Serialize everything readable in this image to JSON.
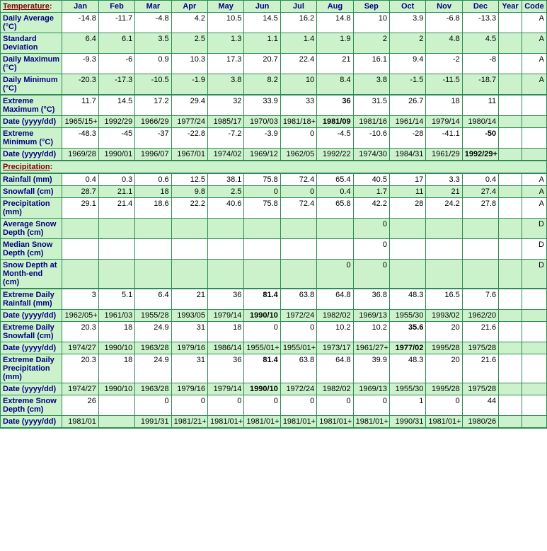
{
  "colors": {
    "header_bg": "#ccf2cc",
    "header_fg": "#000080",
    "section_fg": "#800000",
    "border": "#2e8b57",
    "white_row_bg": "#ffffff",
    "green_row_bg": "#ccf2cc",
    "text": "#000000"
  },
  "headers": [
    "Temperature:",
    "Jan",
    "Feb",
    "Mar",
    "Apr",
    "May",
    "Jun",
    "Jul",
    "Aug",
    "Sep",
    "Oct",
    "Nov",
    "Dec",
    "Year",
    "Code"
  ],
  "sections": [
    {
      "title": "Temperature:",
      "is_first": true,
      "rows": [
        {
          "label": "Daily Average (°C)",
          "shade": "white",
          "cells": [
            "-14.8",
            "-11.7",
            "-4.8",
            "4.2",
            "10.5",
            "14.5",
            "16.2",
            "14.8",
            "10",
            "3.9",
            "-6.8",
            "-13.3",
            "",
            "A"
          ]
        },
        {
          "label": "Standard Deviation",
          "shade": "green",
          "cells": [
            "6.4",
            "6.1",
            "3.5",
            "2.5",
            "1.3",
            "1.1",
            "1.4",
            "1.9",
            "2",
            "2",
            "4.8",
            "4.5",
            "",
            "A"
          ]
        },
        {
          "label": "Daily Maximum (°C)",
          "shade": "white",
          "cells": [
            "-9.3",
            "-6",
            "0.9",
            "10.3",
            "17.3",
            "20.7",
            "22.4",
            "21",
            "16.1",
            "9.4",
            "-2",
            "-8",
            "",
            "A"
          ]
        },
        {
          "label": "Daily Minimum (°C)",
          "shade": "green",
          "bottom_border": true,
          "cells": [
            "-20.3",
            "-17.3",
            "-10.5",
            "-1.9",
            "3.8",
            "8.2",
            "10",
            "8.4",
            "3.8",
            "-1.5",
            "-11.5",
            "-18.7",
            "",
            "A"
          ]
        },
        {
          "label": "Extreme Maximum (°C)",
          "shade": "white",
          "top_border": true,
          "cells": [
            "11.7",
            "14.5",
            "17.2",
            "29.4",
            "32",
            "33.9",
            "33",
            {
              "v": "36",
              "b": true
            },
            "31.5",
            "26.7",
            "18",
            "11",
            "",
            ""
          ]
        },
        {
          "label": "Date (yyyy/dd)",
          "shade": "green",
          "cells": [
            "1965/15+",
            "1992/29",
            "1966/29",
            "1977/24",
            "1985/17",
            "1970/03",
            "1981/18+",
            {
              "v": "1981/09",
              "b": true
            },
            "1981/16",
            "1961/14",
            "1979/14",
            "1980/14",
            "",
            ""
          ]
        },
        {
          "label": "Extreme Minimum (°C)",
          "shade": "white",
          "cells": [
            "-48.3",
            "-45",
            "-37",
            "-22.8",
            "-7.2",
            "-3.9",
            "0",
            "-4.5",
            "-10.6",
            "-28",
            "-41.1",
            {
              "v": "-50",
              "b": true
            },
            "",
            ""
          ]
        },
        {
          "label": "Date (yyyy/dd)",
          "shade": "green",
          "bottom_border": true,
          "cells": [
            "1969/28",
            "1990/01",
            "1996/07",
            "1967/01",
            "1974/02",
            "1969/12",
            "1962/05",
            "1992/22",
            "1974/30",
            "1984/31",
            "1961/29",
            {
              "v": "1992/29+",
              "b": true
            },
            "",
            ""
          ]
        }
      ]
    },
    {
      "title": "Precipitation:",
      "rows": [
        {
          "label": "Rainfall (mm)",
          "shade": "white",
          "cells": [
            "0.4",
            "0.3",
            "0.6",
            "12.5",
            "38.1",
            "75.8",
            "72.4",
            "65.4",
            "40.5",
            "17",
            "3.3",
            "0.4",
            "",
            "A"
          ]
        },
        {
          "label": "Snowfall (cm)",
          "shade": "green",
          "cells": [
            "28.7",
            "21.1",
            "18",
            "9.8",
            "2.5",
            "0",
            "0",
            "0.4",
            "1.7",
            "11",
            "21",
            "27.4",
            "",
            "A"
          ]
        },
        {
          "label": "Precipitation (mm)",
          "shade": "white",
          "cells": [
            "29.1",
            "21.4",
            "18.6",
            "22.2",
            "40.6",
            "75.8",
            "72.4",
            "65.8",
            "42.2",
            "28",
            "24.2",
            "27.8",
            "",
            "A"
          ]
        },
        {
          "label": "Average Snow Depth (cm)",
          "shade": "green",
          "cells": [
            "",
            "",
            "",
            "",
            "",
            "",
            "",
            "",
            "0",
            "",
            "",
            "",
            "",
            "D"
          ]
        },
        {
          "label": "Median Snow Depth (cm)",
          "shade": "white",
          "cells": [
            "",
            "",
            "",
            "",
            "",
            "",
            "",
            "",
            "0",
            "",
            "",
            "",
            "",
            "D"
          ]
        },
        {
          "label": "Snow Depth at Month-end (cm)",
          "shade": "green",
          "bottom_border": true,
          "cells": [
            "",
            "",
            "",
            "",
            "",
            "",
            "",
            "0",
            "0",
            "",
            "",
            "",
            "",
            "D"
          ]
        },
        {
          "label": "Extreme Daily Rainfall (mm)",
          "shade": "white",
          "top_border": true,
          "cells": [
            "3",
            "5.1",
            "6.4",
            "21",
            "36",
            {
              "v": "81.4",
              "b": true
            },
            "63.8",
            "64.8",
            "36.8",
            "48.3",
            "16.5",
            "7.6",
            "",
            ""
          ]
        },
        {
          "label": "Date (yyyy/dd)",
          "shade": "green",
          "cells": [
            "1962/05+",
            "1961/03",
            "1955/28",
            "1993/05",
            "1979/14",
            {
              "v": "1990/10",
              "b": true
            },
            "1972/24",
            "1982/02",
            "1969/13",
            "1955/30",
            "1993/02",
            "1962/20",
            "",
            ""
          ]
        },
        {
          "label": "Extreme Daily Snowfall (cm)",
          "shade": "white",
          "cells": [
            "20.3",
            "18",
            "24.9",
            "31",
            "18",
            "0",
            "0",
            "10.2",
            "10.2",
            {
              "v": "35.6",
              "b": true
            },
            "20",
            "21.6",
            "",
            ""
          ]
        },
        {
          "label": "Date (yyyy/dd)",
          "shade": "green",
          "cells": [
            "1974/27",
            "1990/10",
            "1963/28",
            "1979/16",
            "1986/14",
            "1955/01+",
            "1955/01+",
            "1973/17",
            "1961/27+",
            {
              "v": "1977/02",
              "b": true
            },
            "1995/28",
            "1975/28",
            "",
            ""
          ]
        },
        {
          "label": "Extreme Daily Precipitation (mm)",
          "shade": "white",
          "cells": [
            "20.3",
            "18",
            "24.9",
            "31",
            "36",
            {
              "v": "81.4",
              "b": true
            },
            "63.8",
            "64.8",
            "39.9",
            "48.3",
            "20",
            "21.6",
            "",
            ""
          ]
        },
        {
          "label": "Date (yyyy/dd)",
          "shade": "green",
          "cells": [
            "1974/27",
            "1990/10",
            "1963/28",
            "1979/16",
            "1979/14",
            {
              "v": "1990/10",
              "b": true
            },
            "1972/24",
            "1982/02",
            "1969/13",
            "1955/30",
            "1995/28",
            "1975/28",
            "",
            ""
          ]
        },
        {
          "label": "Extreme Snow Depth (cm)",
          "shade": "white",
          "cells": [
            "26",
            "",
            "0",
            "0",
            "0",
            "0",
            "0",
            "0",
            "0",
            "1",
            "0",
            "44",
            "",
            ""
          ]
        },
        {
          "label": "Date (yyyy/dd)",
          "shade": "green",
          "bottom_border": true,
          "cells": [
            "1981/01",
            "",
            "1991/31",
            "1981/21+",
            "1981/01+",
            "1981/01+",
            "1981/01+",
            "1981/01+",
            "1981/01+",
            "1990/31",
            "1981/01+",
            "1980/26",
            "",
            ""
          ]
        }
      ]
    }
  ]
}
